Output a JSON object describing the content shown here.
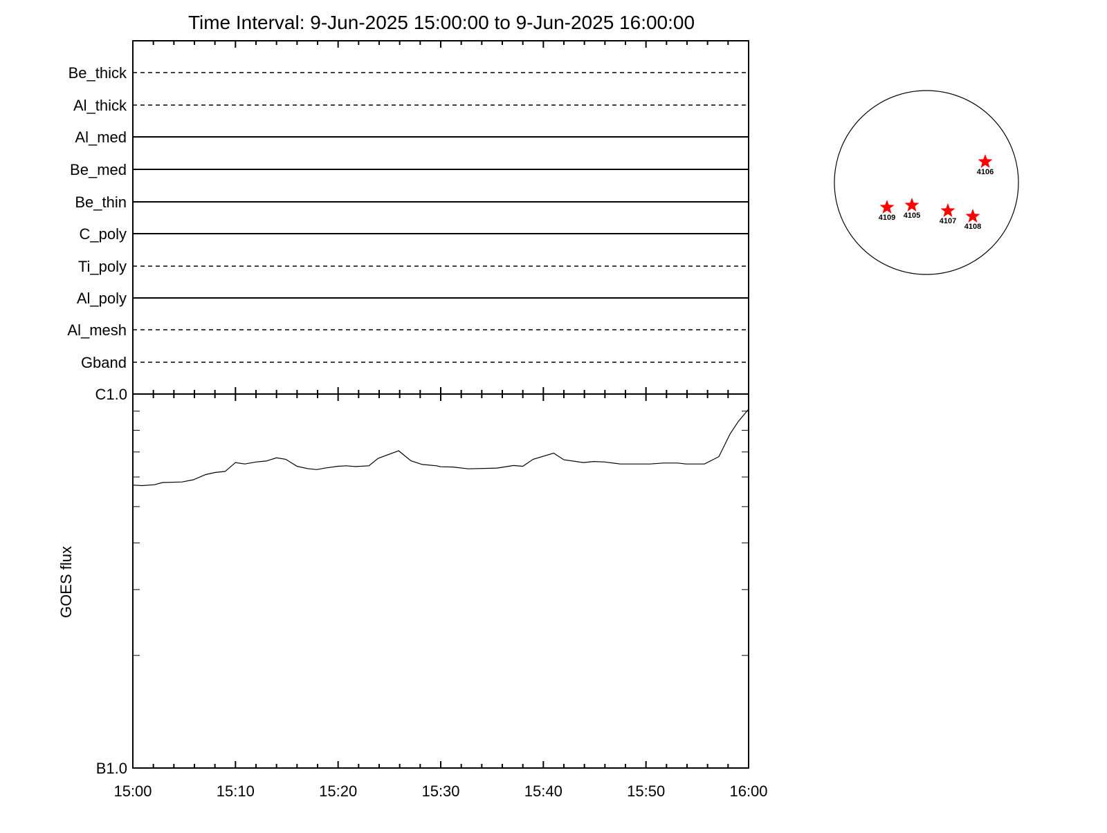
{
  "chart_data": [
    {
      "type": "table",
      "title": "Time Interval:  9-Jun-2025 15:00:00 to  9-Jun-2025 16:00:00",
      "filters": [
        {
          "label": "Be_thick",
          "style": "dashed"
        },
        {
          "label": "Al_thick",
          "style": "dashed"
        },
        {
          "label": "Al_med",
          "style": "solid"
        },
        {
          "label": "Be_med",
          "style": "solid"
        },
        {
          "label": "Be_thin",
          "style": "solid"
        },
        {
          "label": "C_poly",
          "style": "solid"
        },
        {
          "label": "Ti_poly",
          "style": "dashed"
        },
        {
          "label": "Al_poly",
          "style": "solid"
        },
        {
          "label": "Al_mesh",
          "style": "dashed"
        },
        {
          "label": "Gband",
          "style": "dashed"
        }
      ]
    },
    {
      "type": "line",
      "ylabel": "GOES flux",
      "xlabel": "",
      "yscale": "log",
      "ylim": [
        1e-07,
        1e-06
      ],
      "ytick_labels": [
        {
          "value": 1e-06,
          "label": "C1.0"
        },
        {
          "value": 1e-07,
          "label": "B1.0"
        }
      ],
      "xlim": [
        "15:00",
        "16:00"
      ],
      "xtick_labels": [
        "15:00",
        "15:10",
        "15:20",
        "15:30",
        "15:40",
        "15:50",
        "16:00"
      ],
      "grid": false,
      "color": "#000000",
      "x": [
        "15:00:00",
        "15:00:54",
        "15:02:06",
        "15:02:54",
        "15:04:48",
        "15:05:54",
        "15:07:06",
        "15:08:00",
        "15:09:00",
        "15:10:00",
        "15:10:54",
        "15:12:00",
        "15:13:00",
        "15:14:00",
        "15:14:54",
        "15:16:00",
        "15:17:00",
        "15:17:54",
        "15:18:54",
        "15:20:00",
        "15:20:48",
        "15:21:42",
        "15:23:00",
        "15:23:54",
        "15:25:54",
        "15:27:06",
        "15:28:12",
        "15:29:36",
        "15:30:00",
        "15:31:12",
        "15:32:42",
        "15:35:30",
        "15:37:06",
        "15:38:00",
        "15:39:00",
        "15:41:00",
        "15:42:00",
        "15:43:54",
        "15:44:54",
        "15:46:00",
        "15:47:30",
        "15:50:24",
        "15:51:42",
        "15:53:06",
        "15:53:54",
        "15:55:42",
        "15:57:06",
        "15:58:12",
        "15:59:00",
        "16:00:00"
      ],
      "y": [
        5.71e-07,
        5.69e-07,
        5.72e-07,
        5.8e-07,
        5.82e-07,
        5.9e-07,
        6.09e-07,
        6.17e-07,
        6.21e-07,
        6.56e-07,
        6.5e-07,
        6.58e-07,
        6.62e-07,
        6.75e-07,
        6.69e-07,
        6.41e-07,
        6.32e-07,
        6.28e-07,
        6.35e-07,
        6.41e-07,
        6.43e-07,
        6.4e-07,
        6.43e-07,
        6.73e-07,
        7.05e-07,
        6.63e-07,
        6.48e-07,
        6.43e-07,
        6.39e-07,
        6.38e-07,
        6.31e-07,
        6.34e-07,
        6.44e-07,
        6.41e-07,
        6.69e-07,
        6.95e-07,
        6.67e-07,
        6.56e-07,
        6.6e-07,
        6.58e-07,
        6.5e-07,
        6.5e-07,
        6.54e-07,
        6.54e-07,
        6.5e-07,
        6.5e-07,
        6.8e-07,
        7.83e-07,
        8.45e-07,
        9.11e-07
      ]
    },
    {
      "type": "scatter",
      "marker_color": "#ff0000",
      "regions": [
        "4106",
        "4109",
        "4105",
        "4107",
        "4108"
      ]
    }
  ]
}
